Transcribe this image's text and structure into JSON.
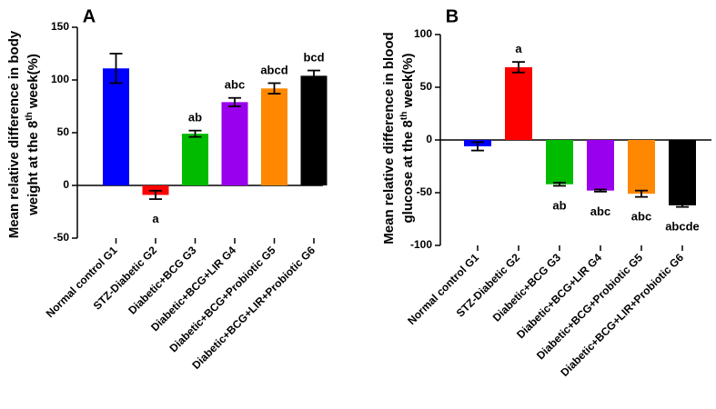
{
  "chart_data": [
    {
      "type": "bar",
      "panel": "A",
      "ylabel_lines": [
        "Mean relative difference in body",
        "weight at the 8",
        "th",
        " week(%)"
      ],
      "ylim": [
        -50,
        150
      ],
      "yticks": [
        -50,
        0,
        50,
        100,
        150
      ],
      "categories": [
        "Normal control G1",
        "STZ-Diabetic G2",
        "Diabetic+BCG G3",
        "Diabetic+BCG+LIR G4",
        "Diabetic+BCG+Probiotic G5",
        "Diabetic+BCG+LIR+Probiotic G6"
      ],
      "values": [
        111,
        -9,
        49,
        79,
        92,
        104
      ],
      "errors": [
        14,
        4,
        3,
        4,
        5,
        5
      ],
      "colors": [
        "#0000ff",
        "#ff0000",
        "#00bb00",
        "#9900ee",
        "#ff8800",
        "#000000"
      ],
      "significance": [
        "",
        "a",
        "ab",
        "abc",
        "abcd",
        "bcd"
      ]
    },
    {
      "type": "bar",
      "panel": "B",
      "ylabel_lines": [
        "Mean relative difference in blood",
        "glucose at the 8",
        "th",
        " week(%)"
      ],
      "ylim": [
        -100,
        100
      ],
      "yticks": [
        -100,
        -50,
        0,
        50,
        100
      ],
      "categories": [
        "Normal control G1",
        "STZ-Diabetic G2",
        "Diabetic+BCG G3",
        "Diabetic+BCG+LIR G4",
        "Diabetic+BCG+Probiotic G5",
        "Diabetic+BCG+LIR+Probiotic G6"
      ],
      "values": [
        -6,
        69,
        -42,
        -48,
        -51,
        -62
      ],
      "errors": [
        4,
        5,
        1.5,
        1,
        3,
        1.5
      ],
      "colors": [
        "#0000ff",
        "#ff0000",
        "#00bb00",
        "#9900ee",
        "#ff8800",
        "#000000"
      ],
      "significance": [
        "",
        "a",
        "ab",
        "abc",
        "abc",
        "abcde"
      ]
    }
  ]
}
